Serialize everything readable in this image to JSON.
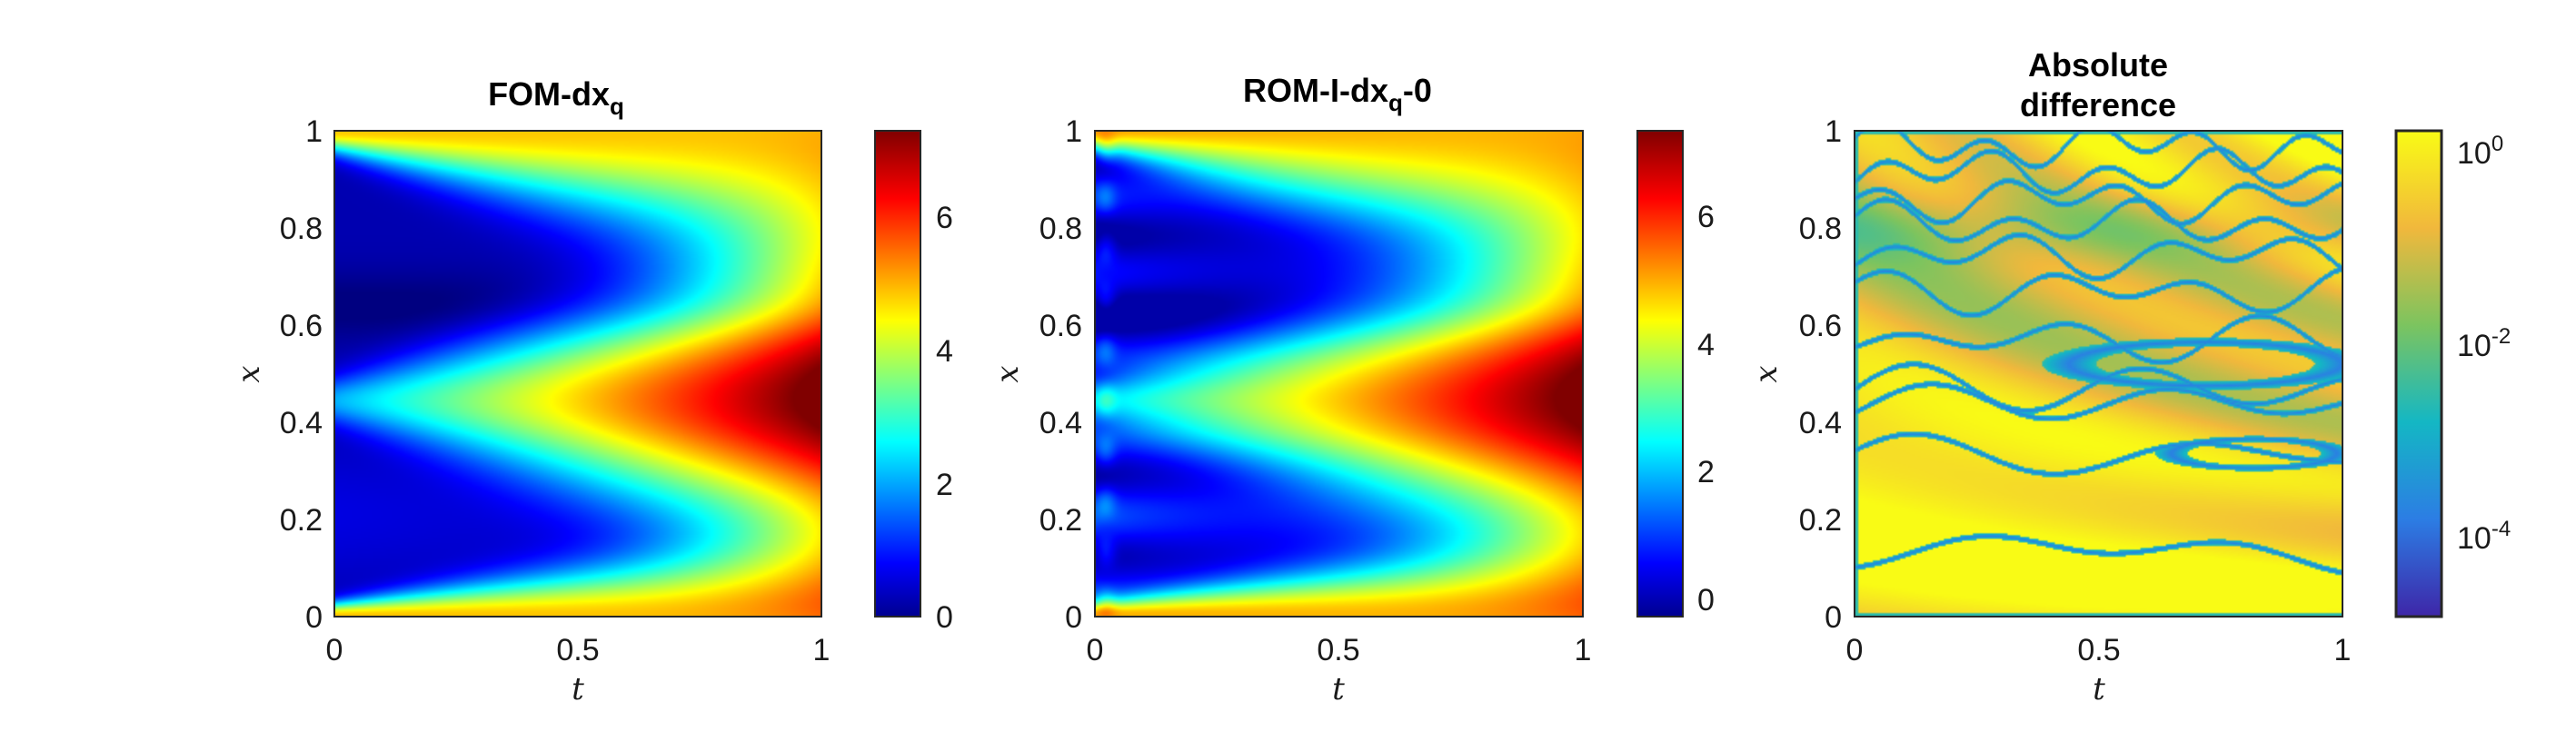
{
  "chart_data": [
    {
      "type": "heatmap",
      "title": "FOM-dx",
      "title_subscript": "q",
      "title_suffix": "",
      "xlabel": "t",
      "ylabel": "x",
      "xlim": [
        0,
        1
      ],
      "ylim": [
        0,
        1
      ],
      "xticks": [
        "0",
        "0.5",
        "1"
      ],
      "yticks": [
        "0",
        "0.2",
        "0.4",
        "0.6",
        "0.8",
        "1"
      ],
      "colormap": "jet",
      "colorbar": {
        "scale": "linear",
        "range": [
          0,
          7.3
        ],
        "ticks": [
          "0",
          "2",
          "4",
          "6"
        ]
      }
    },
    {
      "type": "heatmap",
      "title": "ROM-I-dx",
      "title_subscript": "q",
      "title_suffix": "-0",
      "xlabel": "t",
      "ylabel": "x",
      "xlim": [
        0,
        1
      ],
      "ylim": [
        0,
        1
      ],
      "xticks": [
        "0",
        "0.5",
        "1"
      ],
      "yticks": [
        "0",
        "0.2",
        "0.4",
        "0.6",
        "0.8",
        "1"
      ],
      "colormap": "jet",
      "colorbar": {
        "scale": "linear",
        "range": [
          -0.3,
          7.3
        ],
        "ticks": [
          "0",
          "2",
          "4",
          "6"
        ]
      }
    },
    {
      "type": "heatmap",
      "title_lines": [
        "Absolute",
        "difference"
      ],
      "xlabel": "t",
      "ylabel": "x",
      "xlim": [
        0,
        1
      ],
      "ylim": [
        0,
        1
      ],
      "xticks": [
        "0",
        "0.5",
        "1"
      ],
      "yticks": [
        "0",
        "0.2",
        "0.4",
        "0.6",
        "0.8",
        "1"
      ],
      "colormap": "parula",
      "colorbar": {
        "scale": "log",
        "range_exponent": [
          -5,
          0.2
        ],
        "ticks": [
          {
            "base": "10",
            "exp": "0"
          },
          {
            "base": "10",
            "exp": "-2"
          },
          {
            "base": "10",
            "exp": "-4"
          }
        ]
      }
    }
  ]
}
